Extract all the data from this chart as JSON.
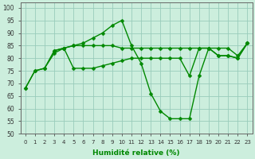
{
  "xlabel": "Humidité relative (%)",
  "background_color": "#cceedd",
  "grid_color": "#99ccbb",
  "line_color": "#008800",
  "markersize": 2.5,
  "linewidth": 1.0,
  "xlim": [
    -0.5,
    23.5
  ],
  "ylim": [
    50,
    102
  ],
  "yticks": [
    50,
    55,
    60,
    65,
    70,
    75,
    80,
    85,
    90,
    95,
    100
  ],
  "xticks": [
    0,
    1,
    2,
    3,
    4,
    5,
    6,
    7,
    8,
    9,
    10,
    11,
    12,
    13,
    14,
    15,
    16,
    17,
    18,
    19,
    20,
    21,
    22,
    23
  ],
  "series": [
    {
      "x": [
        0,
        1,
        2,
        3,
        4,
        5,
        6,
        7,
        8,
        9,
        10,
        11,
        12,
        13,
        14,
        15,
        16,
        17,
        18,
        19,
        20,
        21,
        22,
        23
      ],
      "y": [
        68,
        75,
        76,
        83,
        84,
        85,
        86,
        88,
        90,
        93,
        95,
        85,
        78,
        66,
        59,
        56,
        56,
        56,
        73,
        84,
        81,
        81,
        80,
        86
      ]
    },
    {
      "x": [
        3,
        4,
        5,
        6,
        7,
        8,
        9,
        10,
        11,
        12,
        13,
        14,
        15,
        16,
        17,
        18,
        19,
        20,
        21,
        22,
        23
      ],
      "y": [
        83,
        84,
        85,
        85,
        85,
        85,
        85,
        84,
        84,
        84,
        84,
        84,
        84,
        84,
        84,
        84,
        84,
        84,
        84,
        81,
        86
      ]
    },
    {
      "x": [
        0,
        1,
        2,
        3,
        4,
        5,
        6,
        7,
        8,
        9,
        10,
        11,
        12,
        13,
        14,
        15,
        16,
        17,
        18,
        19,
        20,
        21,
        22,
        23
      ],
      "y": [
        68,
        75,
        76,
        82,
        84,
        76,
        76,
        76,
        77,
        78,
        79,
        80,
        80,
        80,
        80,
        80,
        80,
        73,
        84,
        84,
        81,
        81,
        80,
        86
      ]
    }
  ]
}
